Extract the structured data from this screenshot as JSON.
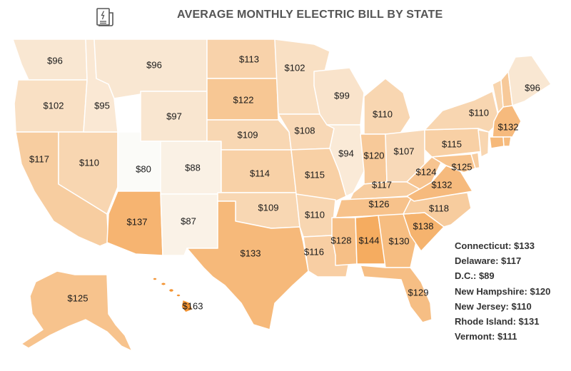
{
  "title": "AVERAGE MONTHLY ELECTRIC BILL BY STATE",
  "icon": "electric-bill-icon",
  "color_scale": {
    "low": "#fbfbf8",
    "high": "#f39433",
    "min": 80,
    "max": 163
  },
  "states": [
    {
      "id": "wa",
      "label": "$96",
      "value": 96
    },
    {
      "id": "or",
      "label": "$102",
      "value": 102
    },
    {
      "id": "ca",
      "label": "$117",
      "value": 117
    },
    {
      "id": "nv",
      "label": "$110",
      "value": 110
    },
    {
      "id": "id",
      "label": "$95",
      "value": 95
    },
    {
      "id": "mt",
      "label": "$96",
      "value": 96
    },
    {
      "id": "wy",
      "label": "$97",
      "value": 97
    },
    {
      "id": "ut",
      "label": "$80",
      "value": 80
    },
    {
      "id": "co",
      "label": "$88",
      "value": 88
    },
    {
      "id": "az",
      "label": "$137",
      "value": 137
    },
    {
      "id": "nm",
      "label": "$87",
      "value": 87
    },
    {
      "id": "nd",
      "label": "$113",
      "value": 113
    },
    {
      "id": "sd",
      "label": "$122",
      "value": 122
    },
    {
      "id": "ne",
      "label": "$109",
      "value": 109
    },
    {
      "id": "ks",
      "label": "$114",
      "value": 114
    },
    {
      "id": "ok",
      "label": "$109",
      "value": 109
    },
    {
      "id": "tx",
      "label": "$133",
      "value": 133
    },
    {
      "id": "mn",
      "label": "$102",
      "value": 102
    },
    {
      "id": "ia",
      "label": "$108",
      "value": 108
    },
    {
      "id": "mo",
      "label": "$115",
      "value": 115
    },
    {
      "id": "ar",
      "label": "$110",
      "value": 110
    },
    {
      "id": "la",
      "label": "$116",
      "value": 116
    },
    {
      "id": "wi",
      "label": "$99",
      "value": 99
    },
    {
      "id": "il",
      "label": "$94",
      "value": 94
    },
    {
      "id": "mi",
      "label": "$110",
      "value": 110
    },
    {
      "id": "in",
      "label": "$120",
      "value": 120
    },
    {
      "id": "oh",
      "label": "$107",
      "value": 107
    },
    {
      "id": "ky",
      "label": "$117",
      "value": 117
    },
    {
      "id": "tn",
      "label": "$126",
      "value": 126
    },
    {
      "id": "ms",
      "label": "$128",
      "value": 128
    },
    {
      "id": "al",
      "label": "$144",
      "value": 144
    },
    {
      "id": "ga",
      "label": "$130",
      "value": 130
    },
    {
      "id": "fl",
      "label": "$129",
      "value": 129
    },
    {
      "id": "sc",
      "label": "$138",
      "value": 138
    },
    {
      "id": "nc",
      "label": "$118",
      "value": 118
    },
    {
      "id": "va",
      "label": "$132",
      "value": 132
    },
    {
      "id": "wv",
      "label": "$124",
      "value": 124
    },
    {
      "id": "md",
      "label": "$125",
      "value": 125
    },
    {
      "id": "pa",
      "label": "$115",
      "value": 115
    },
    {
      "id": "ny",
      "label": "$110",
      "value": 110
    },
    {
      "id": "ma",
      "label": "$132",
      "value": 132
    },
    {
      "id": "me",
      "label": "$96",
      "value": 96
    },
    {
      "id": "ak",
      "label": "$125",
      "value": 125
    },
    {
      "id": "hi",
      "label": "$163",
      "value": 163
    }
  ],
  "small_states": [
    {
      "id": "ct",
      "value": 133
    },
    {
      "id": "de",
      "value": 117
    },
    {
      "id": "nh",
      "value": 120
    },
    {
      "id": "nj",
      "value": 110
    },
    {
      "id": "ri",
      "value": 131
    },
    {
      "id": "vt",
      "value": 111
    }
  ],
  "legend": [
    "Connecticut: $133",
    "Delaware: $117",
    "D.C.: $89",
    "New Hampshire: $120",
    "New Jersey: $110",
    "Rhode Island: $131",
    "Vermont: $111"
  ]
}
